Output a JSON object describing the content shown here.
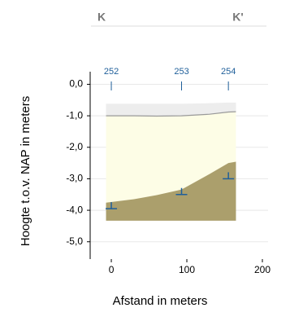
{
  "chart_data": {
    "type": "cross-section",
    "section_start": "K",
    "section_end": "K'",
    "xlabel": "Afstand in meters",
    "ylabel": "Hoogte t.o.v. NAP in meters",
    "xlim": [
      -28,
      200
    ],
    "ylim": [
      -5.55,
      0.4
    ],
    "xticks": [
      0,
      100,
      200
    ],
    "yticks": [
      {
        "value": 0,
        "label": "0,0"
      },
      {
        "value": -1,
        "label": "-1,0"
      },
      {
        "value": -2,
        "label": "-2,0"
      },
      {
        "value": -3,
        "label": "-3,0"
      },
      {
        "value": -4,
        "label": "-4,0"
      },
      {
        "value": -5,
        "label": "-5,0"
      }
    ],
    "grid": true,
    "x": [
      -7,
      30,
      60,
      93,
      130,
      155,
      165
    ],
    "layers": [
      {
        "color": "#ededed",
        "top": [
          -0.62,
          -0.62,
          -0.62,
          -0.62,
          -0.6,
          -0.58,
          -0.58
        ],
        "bottom": [
          -1.0,
          -1.0,
          -1.01,
          -1.0,
          -0.95,
          -0.88,
          -0.87
        ]
      },
      {
        "color": "#fdfde6",
        "top": [
          -1.0,
          -1.0,
          -1.01,
          -1.0,
          -0.95,
          -0.88,
          -0.87
        ],
        "bottom": [
          -3.76,
          -3.65,
          -3.52,
          -3.34,
          -2.85,
          -2.5,
          -2.46
        ]
      },
      {
        "color": "#ab9f6c",
        "top": [
          -3.76,
          -3.65,
          -3.52,
          -3.34,
          -2.85,
          -2.5,
          -2.46
        ],
        "bottom": [
          -4.33,
          -4.33,
          -4.33,
          -4.33,
          -4.33,
          -4.33,
          -4.33
        ]
      }
    ],
    "borings": [
      {
        "label": "252",
        "x": 0,
        "depth": -3.95
      },
      {
        "label": "253",
        "x": 93,
        "depth": -3.5
      },
      {
        "label": "254",
        "x": 155,
        "depth": -3.0
      }
    ],
    "boring_color": "#1f5f9a"
  }
}
